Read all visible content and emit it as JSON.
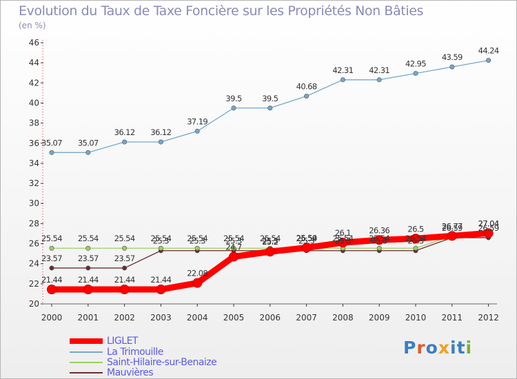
{
  "page": {
    "title": "Evolution du Taux de Taxe Foncière sur les Propriétés Non Bâties",
    "unit": "(en %)",
    "logo_text": "Proxiti"
  },
  "chart_data": {
    "type": "line",
    "x": [
      "2000",
      "2001",
      "2002",
      "2003",
      "2004",
      "2005",
      "2006",
      "2007",
      "2008",
      "2009",
      "2010",
      "2011",
      "2012"
    ],
    "ylim": [
      20,
      46
    ],
    "yticks": [
      20,
      22,
      24,
      26,
      28,
      30,
      32,
      34,
      36,
      38,
      40,
      42,
      44,
      46
    ],
    "grid": false,
    "legend_position": "bottom-left",
    "series": [
      {
        "name": "LIGLET",
        "color": "#ff0000",
        "values": [
          21.44,
          21.44,
          21.44,
          21.44,
          22.08,
          24.7,
          25.2,
          25.59,
          26.1,
          26.36,
          26.5,
          26.77,
          27.04
        ],
        "labels": [
          "21.44",
          "21.44",
          "21.44",
          "21.44",
          "22.08",
          "24.7",
          "25.2",
          "25.59",
          "26.1",
          "26.36",
          "26.5",
          "26.77",
          "27.04"
        ]
      },
      {
        "name": "La Trimouille",
        "color": "#73a7cf",
        "values": [
          35.07,
          35.07,
          36.12,
          36.12,
          37.19,
          39.5,
          39.5,
          40.68,
          42.31,
          42.31,
          42.95,
          43.59,
          44.24
        ],
        "labels": [
          "35.07",
          "35.07",
          "36.12",
          "36.12",
          "37.19",
          "39.5",
          "39.5",
          "40.68",
          "42.31",
          "42.31",
          "42.95",
          "43.59",
          "44.24"
        ]
      },
      {
        "name": "Saint-Hilaire-sur-Benaize",
        "color": "#99d060",
        "values": [
          25.54,
          25.54,
          25.54,
          25.54,
          25.54,
          25.54,
          25.54,
          25.54,
          25.54,
          25.54,
          25.54,
          26.77,
          27.04
        ],
        "labels": [
          "25.54",
          "25.54",
          "25.54",
          "25.54",
          "25.54",
          "25.54",
          "25.54",
          "25.54",
          "25.54",
          "25.54",
          "25.54",
          "26.77",
          "27.04"
        ]
      },
      {
        "name": "Mauvières",
        "color": "#6b2c2c",
        "values": [
          23.57,
          23.57,
          23.57,
          25.3,
          25.3,
          25.3,
          25.3,
          25.3,
          25.3,
          25.3,
          25.3,
          26.59,
          26.59
        ],
        "labels": [
          "23.57",
          "23.57",
          "23.57",
          "25.3",
          "25.3",
          "25.3",
          "25.3",
          "25.3",
          "25.3",
          "25.3",
          "25.3",
          "26.59",
          "26.59"
        ]
      }
    ]
  }
}
